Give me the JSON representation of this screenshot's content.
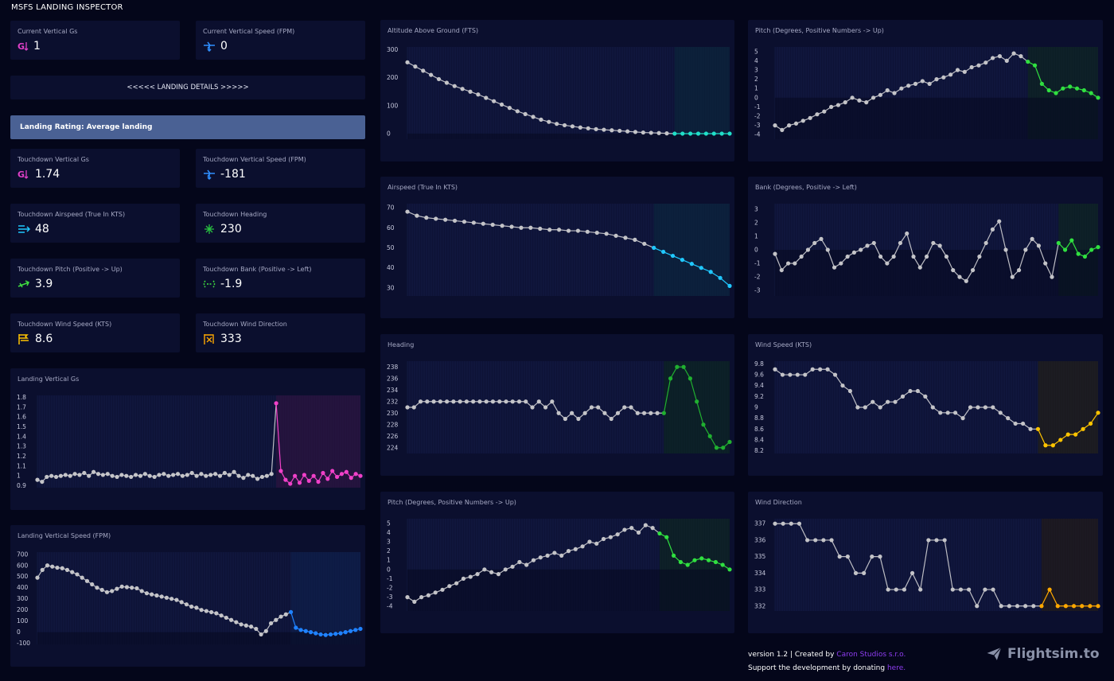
{
  "app": {
    "title": "MSFS LANDING INSPECTOR"
  },
  "current": {
    "vertical_gs": {
      "label": "Current Vertical Gs",
      "value": "1"
    },
    "vertical_speed": {
      "label": "Current Vertical Speed (FPM)",
      "value": "0"
    }
  },
  "details_button": "<<<<< LANDING DETAILS >>>>>",
  "rating": "Landing Rating: Average landing",
  "touchdown": [
    {
      "label": "Touchdown Vertical Gs",
      "value": "1.74",
      "icon": "g-force-icon",
      "color": "#e040c8"
    },
    {
      "label": "Touchdown Vertical Speed (FPM)",
      "value": "-181",
      "icon": "vertical-speed-icon",
      "color": "#2f8fff"
    },
    {
      "label": "Touchdown Airspeed (True In KTS)",
      "value": "48",
      "icon": "airspeed-icon",
      "color": "#20c8ff"
    },
    {
      "label": "Touchdown Heading",
      "value": "230",
      "icon": "heading-icon",
      "color": "#28c040"
    },
    {
      "label": "Touchdown Pitch (Positive -> Up)",
      "value": "3.9",
      "icon": "pitch-icon",
      "color": "#40e040"
    },
    {
      "label": "Touchdown Bank (Positive -> Left)",
      "value": "-1.9",
      "icon": "bank-icon",
      "color": "#40e040"
    },
    {
      "label": "Touchdown Wind Speed (KTS)",
      "value": "8.6",
      "icon": "wind-speed-icon",
      "color": "#ffc400"
    },
    {
      "label": "Touchdown Wind Direction",
      "value": "333",
      "icon": "wind-direction-icon",
      "color": "#ffa800"
    }
  ],
  "footer": {
    "version_text": "version 1.2 | Created by ",
    "creator": "Caron Studios s.r.o.",
    "support_text": "Support the development by donating ",
    "donate_link": "here."
  },
  "brand": "Flightsim.to",
  "chart_data": [
    {
      "id": "landing-vertical-gs",
      "type": "line",
      "title": "Landing Vertical Gs",
      "yticks": [
        0.9,
        1.0,
        1.1,
        1.2,
        1.3,
        1.4,
        1.5,
        1.6,
        1.7,
        1.8
      ],
      "ylim": [
        0.88,
        1.82
      ],
      "highlight_color": "#f040c8",
      "band_color": "#3a1240",
      "series": [
        {
          "values": [
            0.96,
            0.94,
            0.99,
            1.0,
            0.99,
            1.0,
            1.01,
            1.0,
            1.02,
            1.01,
            1.03,
            1.0,
            1.04,
            1.02,
            1.01,
            1.02,
            1.0,
            0.99,
            1.01,
            1.0,
            0.99,
            1.01,
            1.0,
            1.02,
            1.0,
            0.99,
            1.01,
            1.02,
            1.0,
            1.01,
            1.02,
            1.0,
            1.01,
            1.03,
            1.0,
            1.02,
            1.0,
            1.01,
            1.02,
            1.0,
            1.03,
            1.01,
            1.04,
            1.0,
            0.98,
            1.01,
            1.0,
            0.97,
            0.99,
            1.0,
            1.02,
            1.74,
            1.05,
            0.96,
            0.92,
            1.0,
            0.93,
            1.01,
            0.95,
            1.0,
            0.94,
            1.03,
            0.97,
            1.05,
            0.99,
            1.02,
            1.04,
            0.98,
            1.02,
            1.0
          ]
        }
      ],
      "highlight_from": 51
    },
    {
      "id": "landing-vertical-speed",
      "type": "line",
      "title": "Landing Vertical Speed (FPM)",
      "yticks": [
        -100,
        0,
        100,
        200,
        300,
        400,
        500,
        600,
        700
      ],
      "ylim": [
        -110,
        720
      ],
      "highlight_color": "#1f82ff",
      "band_color": "#0e2250",
      "series": [
        {
          "values": [
            490,
            560,
            600,
            590,
            580,
            575,
            560,
            540,
            520,
            490,
            460,
            430,
            400,
            380,
            360,
            370,
            390,
            410,
            405,
            400,
            395,
            370,
            350,
            340,
            330,
            320,
            310,
            300,
            290,
            270,
            250,
            230,
            220,
            200,
            190,
            180,
            170,
            150,
            130,
            110,
            90,
            70,
            60,
            50,
            30,
            -20,
            10,
            80,
            110,
            140,
            160,
            181,
            40,
            20,
            10,
            0,
            -10,
            -20,
            -25,
            -20,
            -15,
            -10,
            0,
            10,
            20,
            30
          ]
        }
      ],
      "highlight_from": 51
    },
    {
      "id": "altitude-above-ground",
      "type": "line",
      "title": "Altitude Above Ground (FTS)",
      "yticks": [
        0,
        100,
        200,
        300
      ],
      "ylim": [
        -20,
        310
      ],
      "highlight_color": "#20e0c8",
      "band_color": "#0a2a3a",
      "series": [
        {
          "values": [
            255,
            240,
            225,
            210,
            195,
            182,
            170,
            160,
            150,
            140,
            128,
            116,
            104,
            92,
            80,
            70,
            60,
            50,
            42,
            35,
            30,
            26,
            22,
            19,
            16,
            14,
            12,
            10,
            8,
            6,
            4,
            3,
            2,
            1,
            0,
            0,
            0,
            0,
            0,
            0,
            0,
            0
          ]
        }
      ],
      "highlight_from": 34
    },
    {
      "id": "airspeed-true",
      "type": "line",
      "title": "Airspeed (True In KTS)",
      "yticks": [
        30,
        40,
        50,
        60,
        70
      ],
      "ylim": [
        26,
        72
      ],
      "highlight_color": "#20c8ff",
      "band_color": "#0a2a3e",
      "series": [
        {
          "values": [
            68,
            66,
            65,
            64.5,
            64,
            63.5,
            63,
            62.5,
            62,
            61.5,
            61,
            60.5,
            60,
            60,
            59.5,
            59,
            59,
            58.5,
            58.5,
            58,
            57.5,
            57,
            56,
            55,
            54,
            52,
            50,
            48,
            46,
            44,
            42,
            40,
            38,
            35,
            31
          ]
        }
      ],
      "highlight_from": 26
    },
    {
      "id": "heading",
      "type": "line",
      "title": "Heading",
      "yticks": [
        224,
        226,
        228,
        230,
        232,
        234,
        236,
        238
      ],
      "ylim": [
        223,
        239
      ],
      "highlight_color": "#20b030",
      "band_color": "#0a2a14",
      "series": [
        {
          "values": [
            231,
            231,
            232,
            232,
            232,
            232,
            232,
            232,
            232,
            232,
            232,
            232,
            232,
            232,
            232,
            232,
            232,
            232,
            232,
            231,
            232,
            231,
            232,
            230,
            229,
            230,
            229,
            230,
            231,
            231,
            230,
            229,
            230,
            231,
            231,
            230,
            230,
            230,
            230,
            230,
            236,
            238,
            238,
            236,
            232,
            228,
            226,
            224,
            224,
            225
          ]
        }
      ],
      "highlight_from": 39
    },
    {
      "id": "pitch-1",
      "type": "line",
      "title": "Pitch (Degrees, Positive Numbers -> Up)",
      "yticks": [
        -4,
        -3,
        -2,
        -1,
        0,
        1,
        2,
        3,
        4,
        5
      ],
      "ylim": [
        -4.5,
        5.5
      ],
      "highlight_color": "#30e040",
      "band_color": "#0c2a14",
      "series": [
        {
          "values": [
            -3,
            -3.5,
            -3,
            -2.8,
            -2.5,
            -2.2,
            -1.8,
            -1.5,
            -1,
            -0.8,
            -0.5,
            0,
            -0.3,
            -0.5,
            0,
            0.3,
            0.8,
            0.5,
            1,
            1.3,
            1.5,
            1.8,
            1.5,
            2,
            2.2,
            2.5,
            3,
            2.8,
            3.3,
            3.5,
            3.8,
            4.3,
            4.5,
            4,
            4.8,
            4.5,
            3.9,
            3.5,
            1.5,
            0.8,
            0.5,
            1,
            1.2,
            1,
            0.8,
            0.5,
            0
          ]
        }
      ],
      "highlight_from": 36
    },
    {
      "id": "pitch-2",
      "type": "line",
      "title": "Pitch (Degrees, Positive Numbers -> Up)",
      "yticks": [
        -4,
        -3,
        -2,
        -1,
        0,
        1,
        2,
        3,
        4,
        5
      ],
      "ylim": [
        -4.5,
        5.5
      ],
      "highlight_color": "#30e040",
      "band_color": "#0c2a14",
      "series": [
        {
          "values": [
            -3,
            -3.5,
            -3,
            -2.8,
            -2.5,
            -2.2,
            -1.8,
            -1.5,
            -1,
            -0.8,
            -0.5,
            0,
            -0.3,
            -0.5,
            0,
            0.3,
            0.8,
            0.5,
            1,
            1.3,
            1.5,
            1.8,
            1.5,
            2,
            2.2,
            2.5,
            3,
            2.8,
            3.3,
            3.5,
            3.8,
            4.3,
            4.5,
            4,
            4.8,
            4.5,
            3.9,
            3.5,
            1.5,
            0.8,
            0.5,
            1,
            1.2,
            1,
            0.8,
            0.5,
            0
          ]
        }
      ],
      "highlight_from": 36
    },
    {
      "id": "bank",
      "type": "line",
      "title": "Bank (Degrees, Positive -> Left)",
      "yticks": [
        -3,
        -2,
        -1,
        0,
        1,
        2,
        3
      ],
      "ylim": [
        -3.4,
        3.4
      ],
      "highlight_color": "#30e040",
      "band_color": "#0c2a14",
      "series": [
        {
          "values": [
            -0.3,
            -1.5,
            -1,
            -1,
            -0.5,
            0,
            0.5,
            0.8,
            0,
            -1.3,
            -1,
            -0.5,
            -0.2,
            0,
            0.3,
            0.5,
            -0.5,
            -1,
            -0.5,
            0.5,
            1.2,
            -0.5,
            -1.3,
            -0.5,
            0.5,
            0.3,
            -0.5,
            -1.5,
            -2,
            -2.3,
            -1.5,
            -0.5,
            0.5,
            1.5,
            2.1,
            0,
            -2,
            -1.5,
            0,
            0.8,
            0.3,
            -1,
            -2,
            0.5,
            0,
            0.7,
            -0.3,
            -0.5,
            0,
            0.2
          ]
        }
      ],
      "highlight_from": 43
    },
    {
      "id": "wind-speed",
      "type": "line",
      "title": "Wind Speed (KTS)",
      "yticks": [
        8.2,
        8.4,
        8.6,
        8.8,
        9.0,
        9.2,
        9.4,
        9.6,
        9.8
      ],
      "ylim": [
        8.15,
        9.85
      ],
      "highlight_color": "#ffc400",
      "band_color": "#2a2208",
      "series": [
        {
          "values": [
            9.7,
            9.6,
            9.6,
            9.6,
            9.6,
            9.7,
            9.7,
            9.7,
            9.6,
            9.4,
            9.3,
            9.0,
            9.0,
            9.1,
            9.0,
            9.1,
            9.1,
            9.2,
            9.3,
            9.3,
            9.2,
            9.0,
            8.9,
            8.9,
            8.9,
            8.8,
            9.0,
            9.0,
            9.0,
            9.0,
            8.9,
            8.8,
            8.7,
            8.7,
            8.6,
            8.6,
            8.3,
            8.3,
            8.4,
            8.5,
            8.5,
            8.6,
            8.7,
            8.9
          ]
        }
      ],
      "highlight_from": 35
    },
    {
      "id": "wind-direction",
      "type": "line",
      "title": "Wind Direction",
      "yticks": [
        332,
        333,
        334,
        335,
        336,
        337
      ],
      "ylim": [
        331.7,
        337.3
      ],
      "highlight_color": "#ffa800",
      "band_color": "#2a1c08",
      "series": [
        {
          "values": [
            337,
            337,
            337,
            337,
            336,
            336,
            336,
            336,
            335,
            335,
            334,
            334,
            335,
            335,
            333,
            333,
            333,
            334,
            333,
            336,
            336,
            336,
            333,
            333,
            333,
            332,
            333,
            333,
            332,
            332,
            332,
            332,
            332,
            332,
            333,
            332,
            332,
            332,
            332,
            332,
            332
          ]
        }
      ],
      "highlight_from": 33
    }
  ]
}
